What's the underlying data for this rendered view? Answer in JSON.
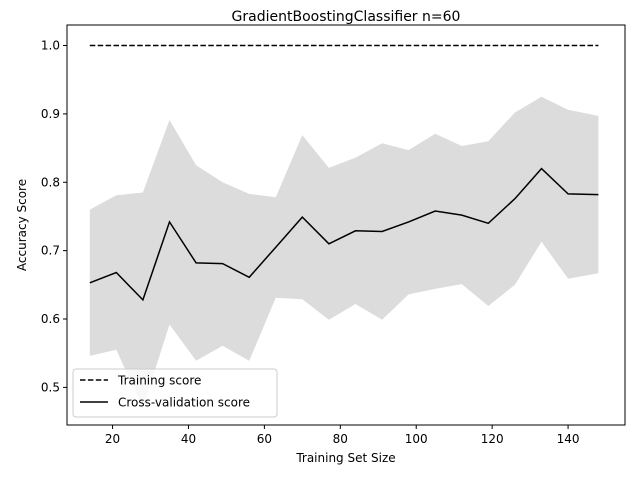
{
  "chart_data": {
    "type": "line",
    "title": "GradientBoostingClassifier n=60",
    "xlabel": "Training Set Size",
    "ylabel": "Accuracy Score",
    "xlim": [
      8,
      155
    ],
    "ylim": [
      0.445,
      1.03
    ],
    "xticks": [
      20,
      40,
      60,
      80,
      100,
      120,
      140
    ],
    "yticks": [
      0.5,
      0.6,
      0.7,
      0.8,
      0.9,
      1.0
    ],
    "xtick_labels": [
      "20",
      "40",
      "60",
      "80",
      "100",
      "120",
      "140"
    ],
    "ytick_labels": [
      "0.5",
      "0.6",
      "0.7",
      "0.8",
      "0.9",
      "1.0"
    ],
    "x": [
      14,
      21,
      28,
      35,
      42,
      49,
      56,
      63,
      70,
      77,
      84,
      91,
      98,
      105,
      112,
      119,
      126,
      133,
      140,
      148
    ],
    "grid": false,
    "legend_position": "lower-left",
    "band_color": "#dcdcdc",
    "line_color": "#000000",
    "series": [
      {
        "name": "Training score",
        "style": "dashed",
        "values": [
          1.0,
          1.0,
          1.0,
          1.0,
          1.0,
          1.0,
          1.0,
          1.0,
          1.0,
          1.0,
          1.0,
          1.0,
          1.0,
          1.0,
          1.0,
          1.0,
          1.0,
          1.0,
          1.0,
          1.0
        ]
      },
      {
        "name": "Cross-validation score",
        "style": "solid",
        "values": [
          0.653,
          0.668,
          0.628,
          0.742,
          0.682,
          0.681,
          0.661,
          0.705,
          0.749,
          0.71,
          0.729,
          0.728,
          0.742,
          0.758,
          0.752,
          0.74,
          0.776,
          0.82,
          0.783,
          0.782
        ],
        "band_upper": [
          0.76,
          0.781,
          0.785,
          0.891,
          0.825,
          0.8,
          0.783,
          0.778,
          0.869,
          0.821,
          0.836,
          0.857,
          0.847,
          0.871,
          0.853,
          0.86,
          0.902,
          0.925,
          0.906,
          0.897
        ],
        "band_lower": [
          0.546,
          0.555,
          0.47,
          0.592,
          0.539,
          0.561,
          0.539,
          0.631,
          0.629,
          0.599,
          0.622,
          0.599,
          0.636,
          0.644,
          0.651,
          0.619,
          0.65,
          0.713,
          0.659,
          0.667
        ]
      }
    ]
  }
}
